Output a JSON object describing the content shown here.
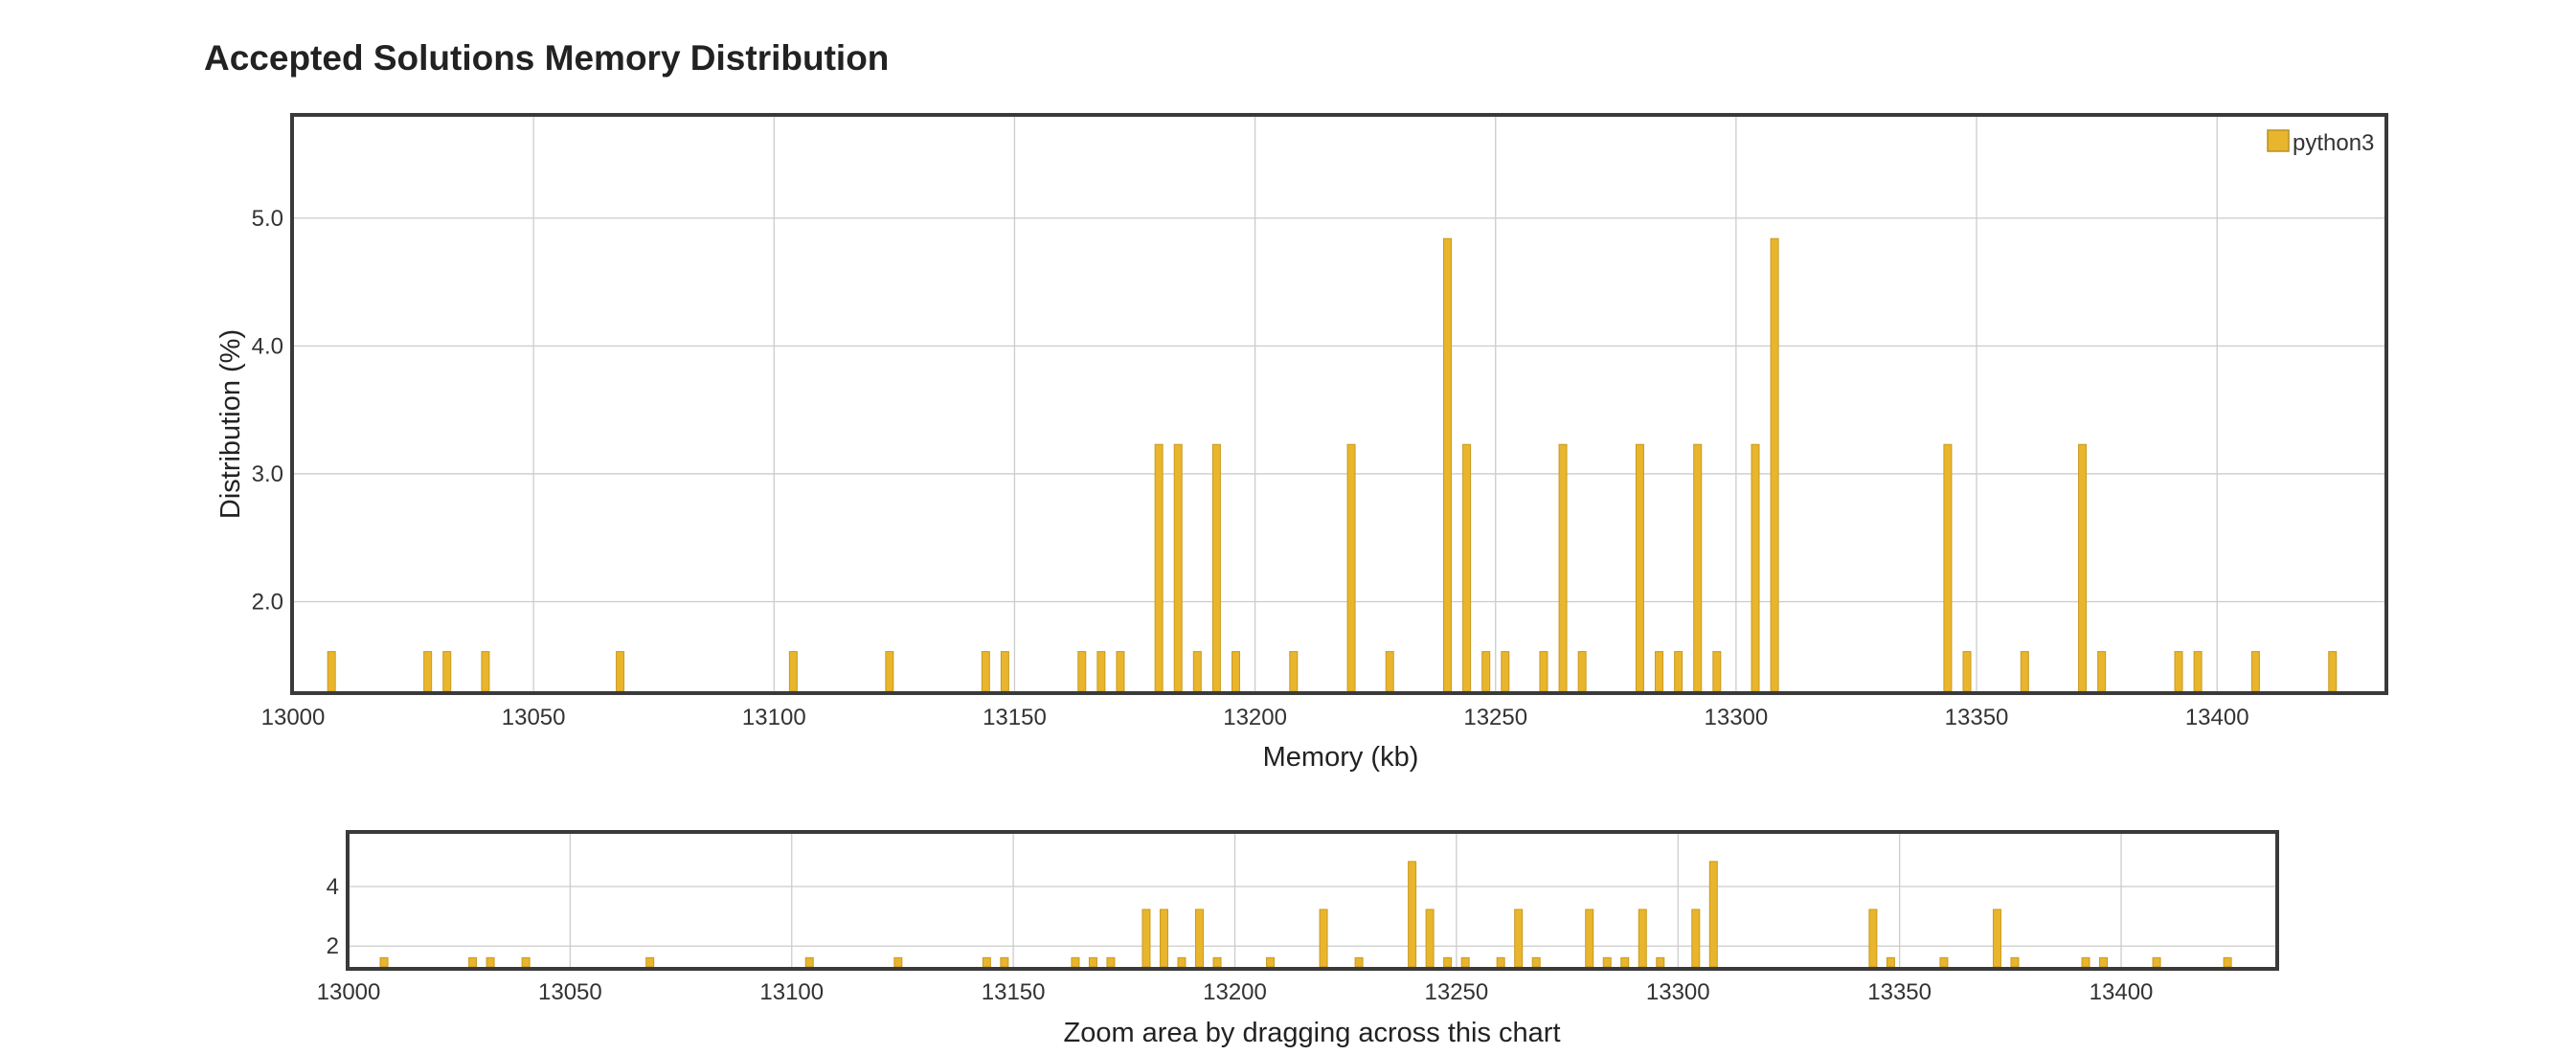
{
  "header": {
    "title": "Accepted Solutions Memory Distribution"
  },
  "chart_data": {
    "type": "bar",
    "title": "Accepted Solutions Memory Distribution",
    "xlabel": "Memory (kb)",
    "ylabel": "Distribution (%)",
    "xlim": [
      13000,
      13435
    ],
    "ylim": [
      1.3,
      5.8
    ],
    "x_ticks": [
      "13000",
      "13050",
      "13100",
      "13150",
      "13200",
      "13250",
      "13300",
      "13350",
      "13400"
    ],
    "y_ticks": [
      "2.0",
      "3.0",
      "4.0",
      "5.0"
    ],
    "grid": true,
    "legend_position": "top-right",
    "bar_color": "#e8b52c",
    "series": [
      {
        "name": "python3",
        "x": [
          13008,
          13028,
          13032,
          13040,
          13068,
          13104,
          13124,
          13144,
          13148,
          13164,
          13168,
          13172,
          13180,
          13184,
          13188,
          13192,
          13196,
          13208,
          13220,
          13228,
          13240,
          13244,
          13248,
          13252,
          13260,
          13264,
          13268,
          13280,
          13284,
          13288,
          13292,
          13296,
          13304,
          13308,
          13344,
          13348,
          13360,
          13372,
          13376,
          13392,
          13396,
          13408,
          13424
        ],
        "values": [
          1.61,
          1.61,
          1.61,
          1.61,
          1.61,
          1.61,
          1.61,
          1.61,
          1.61,
          1.61,
          1.61,
          1.61,
          3.23,
          3.23,
          1.61,
          3.23,
          1.61,
          1.61,
          3.23,
          1.61,
          4.84,
          3.23,
          1.61,
          1.61,
          1.61,
          3.23,
          1.61,
          3.23,
          1.61,
          1.61,
          3.23,
          1.61,
          3.23,
          4.84,
          3.23,
          1.61,
          1.61,
          3.23,
          1.61,
          1.61,
          1.61,
          1.61,
          1.61
        ]
      }
    ],
    "navigator": {
      "label": "Zoom area by dragging across this chart",
      "y_ticks": [
        "2",
        "4"
      ],
      "ylim": [
        1.3,
        5.8
      ]
    }
  }
}
